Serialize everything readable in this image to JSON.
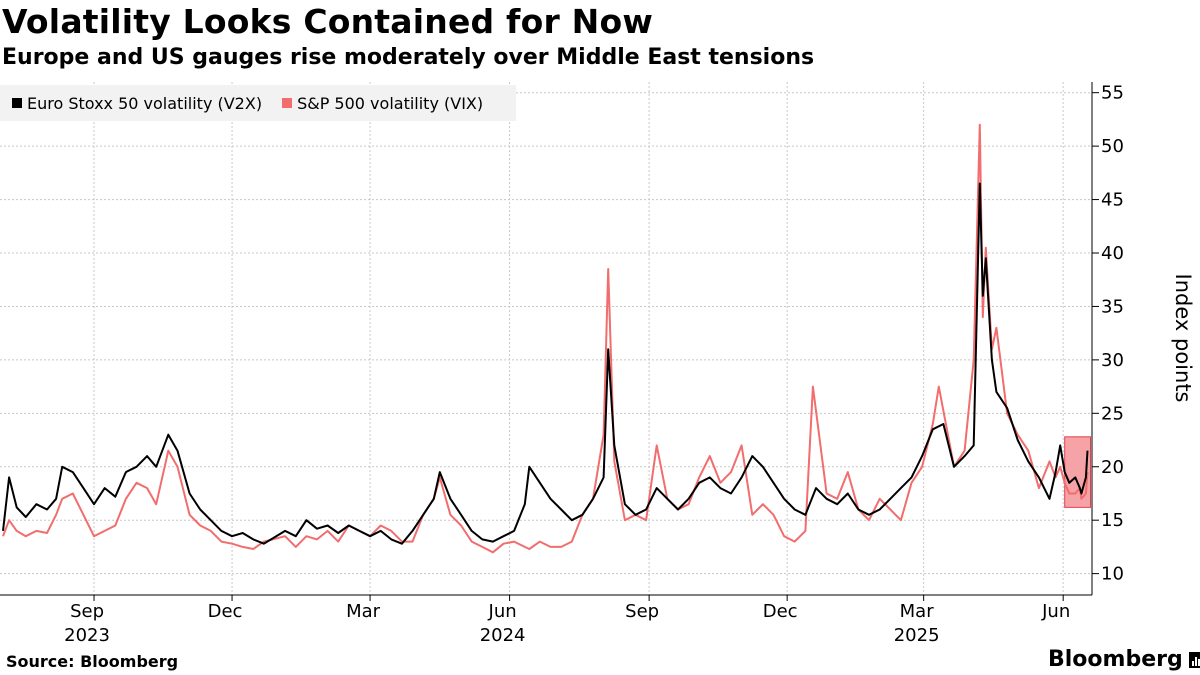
{
  "header": {
    "title": "Volatility Looks Contained for Now",
    "subtitle": "Europe and US gauges rise moderately over Middle East tensions"
  },
  "footer": {
    "source": "Source: Bloomberg",
    "brand": "Bloomberg"
  },
  "colors": {
    "v2x": "#000000",
    "vix": "#f26d6d",
    "highlight_fill": "#f6a3a8",
    "highlight_stroke": "#e53b49",
    "grid": "#c8c8c8",
    "legend_bg": "#f2f2f2"
  },
  "chart_data": {
    "type": "line",
    "title": "Volatility Looks Contained for Now",
    "subtitle": "Europe and US gauges rise moderately over Middle East tensions",
    "ylabel": "Index points",
    "xlabel": "",
    "ylim": [
      8,
      56
    ],
    "xlim": [
      "2023-07-01",
      "2025-06-20"
    ],
    "y_ticks": [
      10,
      15,
      20,
      25,
      30,
      35,
      40,
      45,
      50,
      55
    ],
    "x_ticks": [
      {
        "label": "Sep",
        "date": "2023-09-01",
        "year": "2023"
      },
      {
        "label": "Dec",
        "date": "2023-12-01"
      },
      {
        "label": "Mar",
        "date": "2024-03-01"
      },
      {
        "label": "Jun",
        "date": "2024-06-01",
        "year": "2024"
      },
      {
        "label": "Sep",
        "date": "2024-09-01"
      },
      {
        "label": "Dec",
        "date": "2024-12-01"
      },
      {
        "label": "Mar",
        "date": "2025-03-01",
        "year": "2025"
      },
      {
        "label": "Jun",
        "date": "2025-06-01"
      }
    ],
    "grid": true,
    "legend_position": "top-left",
    "highlight": {
      "x_start": "2025-06-02",
      "x_end": "2025-06-19",
      "y_low": 16.2,
      "y_high": 22.8
    },
    "series": [
      {
        "name": "Euro Stoxx 50 volatility (V2X)",
        "color": "#000000",
        "points": [
          [
            "2023-07-03",
            14.0
          ],
          [
            "2023-07-07",
            19.0
          ],
          [
            "2023-07-12",
            16.2
          ],
          [
            "2023-07-18",
            15.3
          ],
          [
            "2023-07-25",
            16.5
          ],
          [
            "2023-08-01",
            16.0
          ],
          [
            "2023-08-07",
            17.0
          ],
          [
            "2023-08-11",
            20.0
          ],
          [
            "2023-08-18",
            19.5
          ],
          [
            "2023-08-25",
            18.0
          ],
          [
            "2023-09-01",
            16.5
          ],
          [
            "2023-09-08",
            18.0
          ],
          [
            "2023-09-15",
            17.2
          ],
          [
            "2023-09-22",
            19.5
          ],
          [
            "2023-09-29",
            20.0
          ],
          [
            "2023-10-06",
            21.0
          ],
          [
            "2023-10-12",
            20.0
          ],
          [
            "2023-10-20",
            23.0
          ],
          [
            "2023-10-26",
            21.5
          ],
          [
            "2023-11-03",
            17.5
          ],
          [
            "2023-11-10",
            16.0
          ],
          [
            "2023-11-17",
            15.0
          ],
          [
            "2023-11-24",
            14.0
          ],
          [
            "2023-12-01",
            13.5
          ],
          [
            "2023-12-08",
            13.8
          ],
          [
            "2023-12-15",
            13.2
          ],
          [
            "2023-12-22",
            12.8
          ],
          [
            "2024-01-05",
            14.0
          ],
          [
            "2024-01-12",
            13.5
          ],
          [
            "2024-01-19",
            15.0
          ],
          [
            "2024-01-26",
            14.2
          ],
          [
            "2024-02-02",
            14.5
          ],
          [
            "2024-02-09",
            13.8
          ],
          [
            "2024-02-16",
            14.5
          ],
          [
            "2024-02-23",
            14.0
          ],
          [
            "2024-03-01",
            13.5
          ],
          [
            "2024-03-08",
            14.0
          ],
          [
            "2024-03-15",
            13.2
          ],
          [
            "2024-03-22",
            12.8
          ],
          [
            "2024-03-29",
            14.0
          ],
          [
            "2024-04-05",
            15.5
          ],
          [
            "2024-04-12",
            17.0
          ],
          [
            "2024-04-16",
            19.5
          ],
          [
            "2024-04-23",
            17.0
          ],
          [
            "2024-04-30",
            15.5
          ],
          [
            "2024-05-07",
            14.0
          ],
          [
            "2024-05-14",
            13.2
          ],
          [
            "2024-05-21",
            13.0
          ],
          [
            "2024-05-28",
            13.5
          ],
          [
            "2024-06-04",
            14.0
          ],
          [
            "2024-06-11",
            16.5
          ],
          [
            "2024-06-14",
            20.0
          ],
          [
            "2024-06-21",
            18.5
          ],
          [
            "2024-06-28",
            17.0
          ],
          [
            "2024-07-05",
            16.0
          ],
          [
            "2024-07-12",
            15.0
          ],
          [
            "2024-07-19",
            15.5
          ],
          [
            "2024-07-26",
            17.0
          ],
          [
            "2024-08-02",
            19.0
          ],
          [
            "2024-08-05",
            31.0
          ],
          [
            "2024-08-09",
            22.0
          ],
          [
            "2024-08-16",
            16.5
          ],
          [
            "2024-08-23",
            15.5
          ],
          [
            "2024-08-30",
            16.0
          ],
          [
            "2024-09-06",
            18.0
          ],
          [
            "2024-09-13",
            17.0
          ],
          [
            "2024-09-20",
            16.0
          ],
          [
            "2024-09-27",
            17.0
          ],
          [
            "2024-10-04",
            18.5
          ],
          [
            "2024-10-11",
            19.0
          ],
          [
            "2024-10-18",
            18.0
          ],
          [
            "2024-10-25",
            17.5
          ],
          [
            "2024-11-01",
            19.0
          ],
          [
            "2024-11-08",
            21.0
          ],
          [
            "2024-11-15",
            20.0
          ],
          [
            "2024-11-22",
            18.5
          ],
          [
            "2024-11-29",
            17.0
          ],
          [
            "2024-12-06",
            16.0
          ],
          [
            "2024-12-13",
            15.5
          ],
          [
            "2024-12-20",
            18.0
          ],
          [
            "2024-12-27",
            17.0
          ],
          [
            "2025-01-03",
            16.5
          ],
          [
            "2025-01-10",
            17.5
          ],
          [
            "2025-01-17",
            16.0
          ],
          [
            "2025-01-24",
            15.5
          ],
          [
            "2025-01-31",
            16.0
          ],
          [
            "2025-02-07",
            17.0
          ],
          [
            "2025-02-14",
            18.0
          ],
          [
            "2025-02-21",
            19.0
          ],
          [
            "2025-02-28",
            21.0
          ],
          [
            "2025-03-07",
            23.5
          ],
          [
            "2025-03-14",
            24.0
          ],
          [
            "2025-03-21",
            20.0
          ],
          [
            "2025-03-28",
            21.0
          ],
          [
            "2025-04-03",
            22.0
          ],
          [
            "2025-04-07",
            46.5
          ],
          [
            "2025-04-09",
            36.0
          ],
          [
            "2025-04-11",
            39.5
          ],
          [
            "2025-04-15",
            30.0
          ],
          [
            "2025-04-18",
            27.0
          ],
          [
            "2025-04-25",
            25.5
          ],
          [
            "2025-05-02",
            22.5
          ],
          [
            "2025-05-09",
            20.5
          ],
          [
            "2025-05-16",
            19.0
          ],
          [
            "2025-05-23",
            17.0
          ],
          [
            "2025-05-27",
            19.5
          ],
          [
            "2025-05-30",
            22.0
          ],
          [
            "2025-06-02",
            19.5
          ],
          [
            "2025-06-05",
            18.5
          ],
          [
            "2025-06-09",
            19.0
          ],
          [
            "2025-06-12",
            18.0
          ],
          [
            "2025-06-13",
            17.5
          ],
          [
            "2025-06-16",
            19.0
          ],
          [
            "2025-06-17",
            21.5
          ]
        ]
      },
      {
        "name": "S&P 500 volatility (VIX)",
        "color": "#f26d6d",
        "points": [
          [
            "2023-07-03",
            13.5
          ],
          [
            "2023-07-07",
            15.0
          ],
          [
            "2023-07-12",
            14.0
          ],
          [
            "2023-07-18",
            13.5
          ],
          [
            "2023-07-25",
            14.0
          ],
          [
            "2023-08-01",
            13.8
          ],
          [
            "2023-08-07",
            15.5
          ],
          [
            "2023-08-11",
            17.0
          ],
          [
            "2023-08-18",
            17.5
          ],
          [
            "2023-08-25",
            15.5
          ],
          [
            "2023-09-01",
            13.5
          ],
          [
            "2023-09-08",
            14.0
          ],
          [
            "2023-09-15",
            14.5
          ],
          [
            "2023-09-22",
            17.0
          ],
          [
            "2023-09-29",
            18.5
          ],
          [
            "2023-10-06",
            18.0
          ],
          [
            "2023-10-12",
            16.5
          ],
          [
            "2023-10-20",
            21.5
          ],
          [
            "2023-10-26",
            20.0
          ],
          [
            "2023-11-03",
            15.5
          ],
          [
            "2023-11-10",
            14.5
          ],
          [
            "2023-11-17",
            14.0
          ],
          [
            "2023-11-24",
            13.0
          ],
          [
            "2023-12-01",
            12.8
          ],
          [
            "2023-12-08",
            12.5
          ],
          [
            "2023-12-15",
            12.3
          ],
          [
            "2023-12-22",
            13.0
          ],
          [
            "2024-01-05",
            13.5
          ],
          [
            "2024-01-12",
            12.5
          ],
          [
            "2024-01-19",
            13.5
          ],
          [
            "2024-01-26",
            13.2
          ],
          [
            "2024-02-02",
            14.0
          ],
          [
            "2024-02-09",
            13.0
          ],
          [
            "2024-02-16",
            14.5
          ],
          [
            "2024-02-23",
            14.0
          ],
          [
            "2024-03-01",
            13.5
          ],
          [
            "2024-03-08",
            14.5
          ],
          [
            "2024-03-15",
            14.0
          ],
          [
            "2024-03-22",
            13.0
          ],
          [
            "2024-03-29",
            13.0
          ],
          [
            "2024-04-05",
            15.5
          ],
          [
            "2024-04-12",
            17.0
          ],
          [
            "2024-04-16",
            19.0
          ],
          [
            "2024-04-23",
            15.5
          ],
          [
            "2024-04-30",
            14.5
          ],
          [
            "2024-05-07",
            13.0
          ],
          [
            "2024-05-14",
            12.5
          ],
          [
            "2024-05-21",
            12.0
          ],
          [
            "2024-05-28",
            12.8
          ],
          [
            "2024-06-04",
            13.0
          ],
          [
            "2024-06-11",
            12.5
          ],
          [
            "2024-06-14",
            12.3
          ],
          [
            "2024-06-21",
            13.0
          ],
          [
            "2024-06-28",
            12.5
          ],
          [
            "2024-07-05",
            12.5
          ],
          [
            "2024-07-12",
            13.0
          ],
          [
            "2024-07-19",
            15.5
          ],
          [
            "2024-07-26",
            17.0
          ],
          [
            "2024-08-02",
            23.0
          ],
          [
            "2024-08-05",
            38.5
          ],
          [
            "2024-08-09",
            20.5
          ],
          [
            "2024-08-16",
            15.0
          ],
          [
            "2024-08-23",
            15.5
          ],
          [
            "2024-08-30",
            15.0
          ],
          [
            "2024-09-06",
            22.0
          ],
          [
            "2024-09-13",
            17.0
          ],
          [
            "2024-09-20",
            16.0
          ],
          [
            "2024-09-27",
            16.5
          ],
          [
            "2024-10-04",
            19.0
          ],
          [
            "2024-10-11",
            21.0
          ],
          [
            "2024-10-18",
            18.5
          ],
          [
            "2024-10-25",
            19.5
          ],
          [
            "2024-11-01",
            22.0
          ],
          [
            "2024-11-08",
            15.5
          ],
          [
            "2024-11-15",
            16.5
          ],
          [
            "2024-11-22",
            15.5
          ],
          [
            "2024-11-29",
            13.5
          ],
          [
            "2024-12-06",
            13.0
          ],
          [
            "2024-12-13",
            14.0
          ],
          [
            "2024-12-18",
            27.5
          ],
          [
            "2024-12-27",
            17.5
          ],
          [
            "2025-01-03",
            17.0
          ],
          [
            "2025-01-10",
            19.5
          ],
          [
            "2025-01-17",
            16.0
          ],
          [
            "2025-01-24",
            15.0
          ],
          [
            "2025-01-31",
            17.0
          ],
          [
            "2025-02-07",
            16.0
          ],
          [
            "2025-02-14",
            15.0
          ],
          [
            "2025-02-21",
            18.5
          ],
          [
            "2025-02-28",
            20.0
          ],
          [
            "2025-03-07",
            24.0
          ],
          [
            "2025-03-11",
            27.5
          ],
          [
            "2025-03-21",
            20.0
          ],
          [
            "2025-03-28",
            21.5
          ],
          [
            "2025-04-03",
            30.0
          ],
          [
            "2025-04-07",
            52.0
          ],
          [
            "2025-04-09",
            34.0
          ],
          [
            "2025-04-11",
            40.5
          ],
          [
            "2025-04-15",
            31.0
          ],
          [
            "2025-04-18",
            33.0
          ],
          [
            "2025-04-25",
            25.0
          ],
          [
            "2025-05-02",
            23.0
          ],
          [
            "2025-05-09",
            21.5
          ],
          [
            "2025-05-16",
            18.0
          ],
          [
            "2025-05-23",
            20.5
          ],
          [
            "2025-05-27",
            19.0
          ],
          [
            "2025-05-30",
            20.0
          ],
          [
            "2025-06-02",
            18.5
          ],
          [
            "2025-06-05",
            17.5
          ],
          [
            "2025-06-09",
            17.5
          ],
          [
            "2025-06-12",
            18.0
          ],
          [
            "2025-06-13",
            17.0
          ],
          [
            "2025-06-16",
            17.5
          ],
          [
            "2025-06-17",
            19.5
          ]
        ]
      }
    ]
  }
}
